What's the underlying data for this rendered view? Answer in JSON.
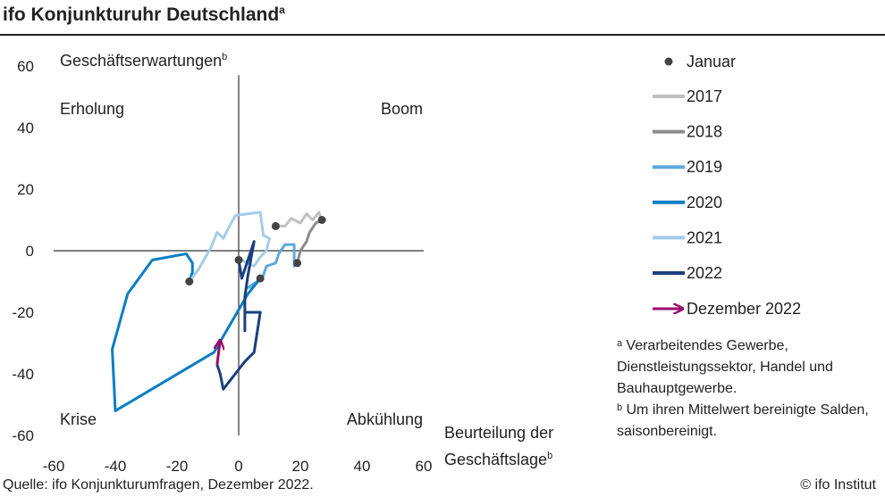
{
  "title": "ifo Konjunkturuhr Deutschland",
  "title_sup": "a",
  "source": "Quelle: ifo Konjunkturumfragen, Dezember 2022.",
  "copyright": "© ifo Institut",
  "footnotes": [
    "ᵃ Verarbeitendes  Gewerbe, Dienstleistungssektor,  Handel und Bauhauptgewerbe.",
    "ᵇ Um ihren Mittelwert bereinigte Salden, saisonbereinigt."
  ],
  "chart_data": {
    "type": "line",
    "xlabel": "Beurteilung der Geschäftslage",
    "xlabel_sup": "b",
    "ylabel": "Geschäftserwartungen",
    "ylabel_sup": "b",
    "xlim": [
      -60,
      60
    ],
    "ylim": [
      -60,
      60
    ],
    "xticks": [
      "-60",
      "-40",
      "-20",
      "0",
      "20",
      "40",
      "60"
    ],
    "yticks": [
      "60",
      "40",
      "20",
      "0",
      "-20",
      "-40",
      "-60"
    ],
    "quadrants": {
      "top_left": "Erholung",
      "top_right": "Boom",
      "bottom_left": "Krise",
      "bottom_right": "Abkühlung"
    },
    "legend_position": "right",
    "january_marker_label": "Januar",
    "series": [
      {
        "name": "2017",
        "color": "#c0c0c0",
        "points": [
          [
            12,
            8
          ],
          [
            15,
            8
          ],
          [
            17,
            10.5
          ],
          [
            20,
            9
          ],
          [
            22,
            12
          ],
          [
            24,
            10
          ],
          [
            26,
            12.5
          ],
          [
            27,
            10
          ]
        ]
      },
      {
        "name": "2018",
        "color": "#8c8c8c",
        "points": [
          [
            27,
            10
          ],
          [
            25,
            9
          ],
          [
            23,
            6
          ],
          [
            22,
            3
          ],
          [
            20,
            0
          ],
          [
            19,
            -4
          ]
        ]
      },
      {
        "name": "2019",
        "color": "#5ea8dc",
        "points": [
          [
            19,
            -4
          ],
          [
            18,
            -5
          ],
          [
            18,
            2
          ],
          [
            15,
            2
          ],
          [
            13,
            -1
          ],
          [
            12,
            -4
          ],
          [
            9,
            -5
          ],
          [
            8,
            -8
          ],
          [
            5,
            -11
          ],
          [
            3,
            -12
          ],
          [
            6,
            -10
          ],
          [
            7,
            -9
          ]
        ]
      },
      {
        "name": "2020",
        "color": "#0b7dc2",
        "points": [
          [
            7,
            -9
          ],
          [
            3,
            -14
          ],
          [
            -8,
            -33
          ],
          [
            -40,
            -52
          ],
          [
            -41,
            -32
          ],
          [
            -36,
            -14
          ],
          [
            -28,
            -3
          ],
          [
            -17,
            -1
          ],
          [
            -15,
            -4
          ],
          [
            -15,
            -7
          ],
          [
            -16,
            -10
          ]
        ]
      },
      {
        "name": "2021",
        "color": "#a3cdea",
        "points": [
          [
            -16,
            -10
          ],
          [
            -13,
            -6
          ],
          [
            -9,
            1
          ],
          [
            -7,
            6
          ],
          [
            -5,
            4
          ],
          [
            -3,
            8
          ],
          [
            -1,
            11.5
          ],
          [
            7,
            12.5
          ],
          [
            8,
            5
          ],
          [
            10,
            4
          ],
          [
            9,
            0
          ],
          [
            7,
            -2
          ],
          [
            5,
            -5
          ],
          [
            1,
            -3
          ],
          [
            0,
            -3
          ]
        ]
      },
      {
        "name": "2022",
        "color": "#1a3f7e",
        "points": [
          [
            0,
            -3
          ],
          [
            1,
            -9
          ],
          [
            5,
            3
          ],
          [
            3,
            -8
          ],
          [
            2,
            -15
          ],
          [
            2,
            -26
          ],
          [
            2,
            -20
          ],
          [
            7,
            -20
          ],
          [
            5,
            -33
          ],
          [
            2,
            -36
          ],
          [
            -5,
            -45
          ],
          [
            -6,
            -40
          ],
          [
            -7,
            -37
          ]
        ]
      }
    ],
    "january_points": [
      [
        12,
        8
      ],
      [
        27,
        10
      ],
      [
        19,
        -4
      ],
      [
        7,
        -9
      ],
      [
        -16,
        -10
      ],
      [
        0,
        -3
      ]
    ],
    "december_2022": {
      "label": "Dezember 2022",
      "color": "#9b0a6e",
      "from": [
        -7,
        -37
      ],
      "to": [
        -6,
        -29
      ]
    }
  }
}
